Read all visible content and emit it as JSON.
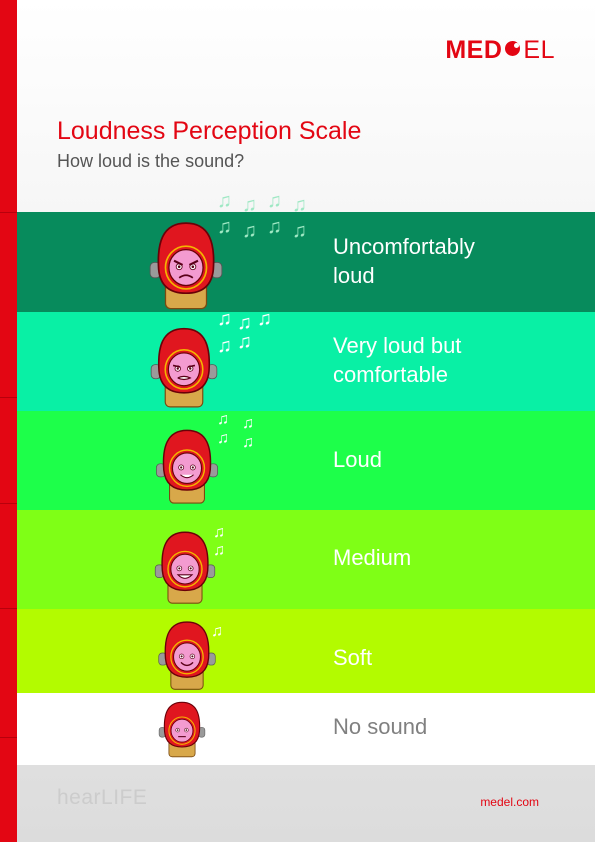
{
  "brand": {
    "logo_left": "MED",
    "logo_right": "EL",
    "accent": "#e30613"
  },
  "header": {
    "title": "Loudness Perception Scale",
    "subtitle": "How loud is the sound?"
  },
  "levels": [
    {
      "label_line1": "Uncomfortably",
      "label_line2": "loud",
      "bg": "#078b5c",
      "text_color": "#ffffff",
      "mood": "angry",
      "notes": 8
    },
    {
      "label_line1": "Very loud but",
      "label_line2": "comfortable",
      "bg": "#09f0a5",
      "text_color": "#ffffff",
      "mood": "strained",
      "notes": 5
    },
    {
      "label_line1": "Loud",
      "label_line2": "",
      "bg": "#1dff4a",
      "text_color": "#ffffff",
      "mood": "smile",
      "notes": 4
    },
    {
      "label_line1": "Medium",
      "label_line2": "",
      "bg": "#7fff16",
      "text_color": "#ffffff",
      "mood": "grin",
      "notes": 2
    },
    {
      "label_line1": "Soft",
      "label_line2": "",
      "bg": "#b3fb00",
      "text_color": "#ffffff",
      "mood": "happy",
      "notes": 1
    },
    {
      "label_line1": "No sound",
      "label_line2": "",
      "bg": "#ffffff",
      "text_color": "#808080",
      "mood": "neutral",
      "notes": 0
    }
  ],
  "footer": {
    "brand": "hearLIFE",
    "url": "medel.com"
  }
}
